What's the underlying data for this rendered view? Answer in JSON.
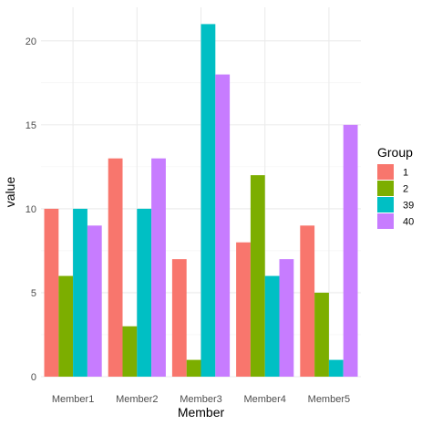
{
  "chart_data": {
    "type": "bar",
    "layout": "grouped",
    "title": "",
    "xlabel": "Member",
    "ylabel": "value",
    "categories": [
      "Member1",
      "Member2",
      "Member3",
      "Member4",
      "Member5"
    ],
    "ylim": [
      0,
      22
    ],
    "yticks": [
      0,
      5,
      10,
      15,
      20
    ],
    "grid": true,
    "legend": {
      "title": "Group",
      "position": "right"
    },
    "series": [
      {
        "name": "1",
        "color": "#F8766D",
        "values": [
          10,
          13,
          7,
          8,
          9
        ]
      },
      {
        "name": "2",
        "color": "#7CAE00",
        "values": [
          6,
          3,
          1,
          12,
          5
        ]
      },
      {
        "name": "39",
        "color": "#00BFC4",
        "values": [
          10,
          10,
          21,
          6,
          1
        ]
      },
      {
        "name": "40",
        "color": "#C77CFF",
        "values": [
          9,
          13,
          18,
          7,
          15
        ]
      }
    ]
  }
}
